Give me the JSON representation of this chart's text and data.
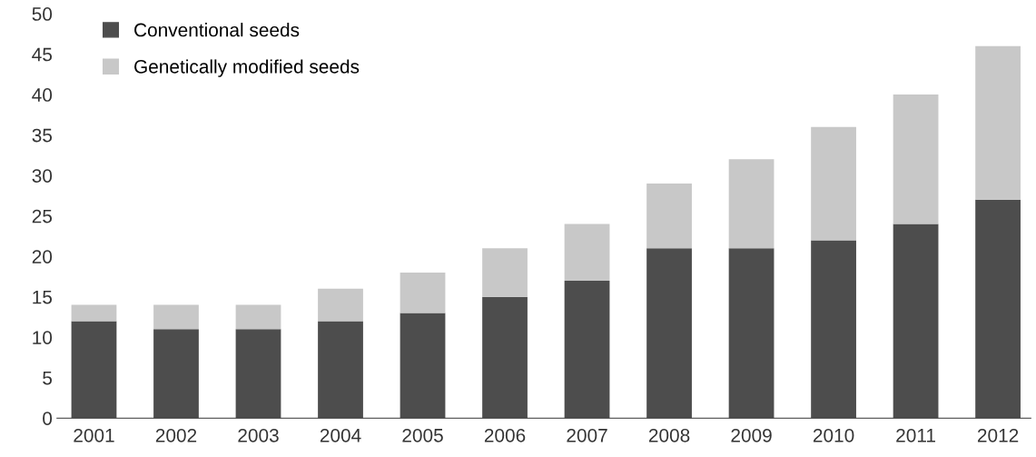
{
  "chart_data": {
    "type": "bar",
    "stacked": true,
    "categories": [
      "2001",
      "2002",
      "2003",
      "2004",
      "2005",
      "2006",
      "2007",
      "2008",
      "2009",
      "2010",
      "2011",
      "2012"
    ],
    "series": [
      {
        "name": "Conventional seeds",
        "color": "#4d4d4d",
        "values": [
          12,
          11,
          11,
          12,
          13,
          15,
          17,
          21,
          21,
          22,
          24,
          27
        ]
      },
      {
        "name": "Genetically modified seeds",
        "color": "#c8c8c8",
        "values": [
          2,
          3,
          3,
          4,
          5,
          6,
          7,
          8,
          11,
          14,
          16,
          19
        ]
      }
    ],
    "ylim": [
      0,
      50
    ],
    "yticks": [
      0,
      5,
      10,
      15,
      20,
      25,
      30,
      35,
      40,
      45,
      50
    ],
    "grid": false,
    "legend": "top left"
  }
}
